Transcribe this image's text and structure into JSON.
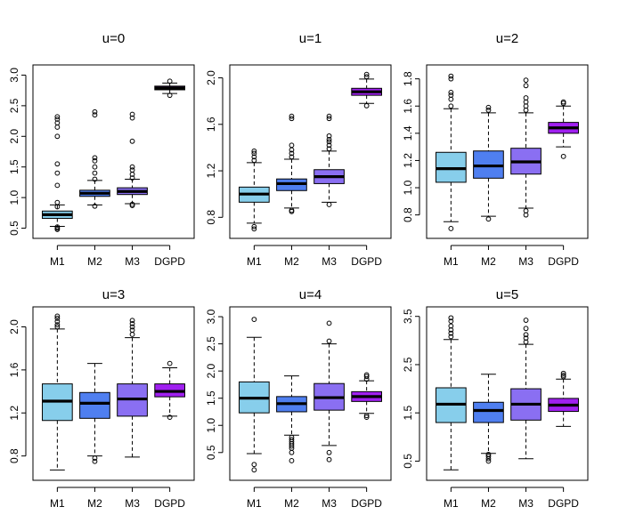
{
  "chart_data": [
    {
      "type": "boxplot",
      "title": "u=0",
      "categories": [
        "M1",
        "M2",
        "M3",
        "DGPD"
      ],
      "colors": [
        "#87ceeb",
        "#4f7ff0",
        "#8a6ff2",
        "#a020f0"
      ],
      "ylim": [
        0.45,
        3.05
      ],
      "yticks": [
        "0.5",
        "1.0",
        "1.5",
        "2.0",
        "2.5",
        "3.0"
      ],
      "boxes": [
        {
          "whisker_low": 0.53,
          "q1": 0.66,
          "median": 0.72,
          "q3": 0.78,
          "whisker_high": 0.88,
          "outliers": [
            0.48,
            0.5,
            0.52,
            0.85,
            0.92,
            1.2,
            1.4,
            1.55,
            2.0,
            2.15,
            2.22,
            2.28,
            2.32
          ]
        },
        {
          "whisker_low": 0.88,
          "q1": 1.02,
          "median": 1.07,
          "q3": 1.12,
          "whisker_high": 1.28,
          "outliers": [
            0.86,
            1.3,
            1.4,
            1.5,
            1.6,
            1.65,
            2.35,
            2.4
          ]
        },
        {
          "whisker_low": 0.9,
          "q1": 1.05,
          "median": 1.1,
          "q3": 1.16,
          "whisker_high": 1.3,
          "outliers": [
            0.87,
            0.89,
            1.32,
            1.38,
            1.45,
            1.5,
            1.92,
            2.3,
            2.36
          ]
        },
        {
          "whisker_low": 2.7,
          "q1": 2.76,
          "median": 2.79,
          "q3": 2.82,
          "whisker_high": 2.87,
          "outliers": [
            2.67,
            2.9
          ]
        }
      ]
    },
    {
      "type": "boxplot",
      "title": "u=1",
      "categories": [
        "M1",
        "M2",
        "M3",
        "DGPD"
      ],
      "colors": [
        "#87ceeb",
        "#4f7ff0",
        "#8a6ff2",
        "#a020f0"
      ],
      "ylim": [
        0.68,
        2.05
      ],
      "yticks": [
        "0.8",
        "1.2",
        "1.6",
        "2.0"
      ],
      "boxes": [
        {
          "whisker_low": 0.75,
          "q1": 0.93,
          "median": 1.0,
          "q3": 1.06,
          "whisker_high": 1.27,
          "outliers": [
            0.7,
            0.72,
            1.29,
            1.32,
            1.35,
            1.37
          ]
        },
        {
          "whisker_low": 0.88,
          "q1": 1.03,
          "median": 1.09,
          "q3": 1.13,
          "whisker_high": 1.3,
          "outliers": [
            0.85,
            0.86,
            1.32,
            1.35,
            1.38,
            1.42,
            1.65,
            1.67
          ]
        },
        {
          "whisker_low": 0.93,
          "q1": 1.09,
          "median": 1.15,
          "q3": 1.21,
          "whisker_high": 1.37,
          "outliers": [
            0.91,
            1.39,
            1.42,
            1.45,
            1.47,
            1.5,
            1.65,
            1.67
          ]
        },
        {
          "whisker_low": 1.78,
          "q1": 1.85,
          "median": 1.88,
          "q3": 1.91,
          "whisker_high": 1.99,
          "outliers": [
            1.76,
            2.01,
            2.03
          ]
        }
      ]
    },
    {
      "type": "boxplot",
      "title": "u=2",
      "categories": [
        "M1",
        "M2",
        "M3",
        "DGPD"
      ],
      "colors": [
        "#87ceeb",
        "#4f7ff0",
        "#8a6ff2",
        "#a020f0"
      ],
      "ylim": [
        0.68,
        1.85
      ],
      "yticks": [
        "0.8",
        "1.0",
        "1.2",
        "1.4",
        "1.6",
        "1.8"
      ],
      "boxes": [
        {
          "whisker_low": 0.75,
          "q1": 1.04,
          "median": 1.14,
          "q3": 1.26,
          "whisker_high": 1.58,
          "outliers": [
            0.7,
            1.6,
            1.65,
            1.68,
            1.7,
            1.8,
            1.82
          ]
        },
        {
          "whisker_low": 0.79,
          "q1": 1.07,
          "median": 1.16,
          "q3": 1.27,
          "whisker_high": 1.55,
          "outliers": [
            0.77,
            1.57,
            1.59
          ]
        },
        {
          "whisker_low": 0.85,
          "q1": 1.1,
          "median": 1.19,
          "q3": 1.29,
          "whisker_high": 1.55,
          "outliers": [
            0.8,
            0.83,
            1.57,
            1.6,
            1.63,
            1.66,
            1.75,
            1.79
          ]
        },
        {
          "whisker_low": 1.3,
          "q1": 1.4,
          "median": 1.44,
          "q3": 1.48,
          "whisker_high": 1.6,
          "outliers": [
            1.23,
            1.62,
            1.63
          ]
        }
      ]
    },
    {
      "type": "boxplot",
      "title": "u=3",
      "categories": [
        "M1",
        "M2",
        "M3",
        "DGPD"
      ],
      "colors": [
        "#87ceeb",
        "#4f7ff0",
        "#8a6ff2",
        "#a020f0"
      ],
      "ylim": [
        0.64,
        2.12
      ],
      "yticks": [
        "0.8",
        "1.2",
        "1.6",
        "2.0"
      ],
      "boxes": [
        {
          "whisker_low": 0.67,
          "q1": 1.13,
          "median": 1.31,
          "q3": 1.47,
          "whisker_high": 1.98,
          "outliers": [
            2.0,
            2.02,
            2.05,
            2.08,
            2.1
          ]
        },
        {
          "whisker_low": 0.8,
          "q1": 1.15,
          "median": 1.29,
          "q3": 1.39,
          "whisker_high": 1.66,
          "outliers": [
            0.75,
            0.78
          ]
        },
        {
          "whisker_low": 0.79,
          "q1": 1.17,
          "median": 1.33,
          "q3": 1.47,
          "whisker_high": 1.9,
          "outliers": [
            1.93,
            1.97,
            2.0,
            2.03,
            2.06
          ]
        },
        {
          "whisker_low": 1.17,
          "q1": 1.35,
          "median": 1.4,
          "q3": 1.47,
          "whisker_high": 1.62,
          "outliers": [
            1.16,
            1.66
          ]
        }
      ]
    },
    {
      "type": "boxplot",
      "title": "u=4",
      "categories": [
        "M1",
        "M2",
        "M3",
        "DGPD"
      ],
      "colors": [
        "#87ceeb",
        "#4f7ff0",
        "#8a6ff2",
        "#a020f0"
      ],
      "ylim": [
        0.12,
        3.05
      ],
      "yticks": [
        "0.5",
        "1.0",
        "1.5",
        "2.0",
        "2.5",
        "3.0"
      ],
      "boxes": [
        {
          "whisker_low": 0.48,
          "q1": 1.23,
          "median": 1.5,
          "q3": 1.8,
          "whisker_high": 2.62,
          "outliers": [
            0.18,
            0.28,
            2.95
          ]
        },
        {
          "whisker_low": 0.82,
          "q1": 1.25,
          "median": 1.4,
          "q3": 1.53,
          "whisker_high": 1.91,
          "outliers": [
            0.35,
            0.5,
            0.58,
            0.62,
            0.66,
            0.7,
            0.74,
            0.78
          ]
        },
        {
          "whisker_low": 0.63,
          "q1": 1.28,
          "median": 1.51,
          "q3": 1.77,
          "whisker_high": 2.5,
          "outliers": [
            0.37,
            0.5,
            2.55,
            2.88
          ]
        },
        {
          "whisker_low": 1.22,
          "q1": 1.44,
          "median": 1.53,
          "q3": 1.62,
          "whisker_high": 1.82,
          "outliers": [
            1.15,
            1.18,
            1.85,
            1.9,
            1.93
          ]
        }
      ]
    },
    {
      "type": "boxplot",
      "title": "u=5",
      "categories": [
        "M1",
        "M2",
        "M3",
        "DGPD"
      ],
      "colors": [
        "#87ceeb",
        "#4f7ff0",
        "#8a6ff2",
        "#a020f0"
      ],
      "ylim": [
        0.25,
        3.55
      ],
      "yticks": [
        "0.5",
        "1.5",
        "2.5",
        "3.5"
      ],
      "boxes": [
        {
          "whisker_low": 0.32,
          "q1": 1.3,
          "median": 1.68,
          "q3": 2.02,
          "whisker_high": 3.02,
          "outliers": [
            3.08,
            3.15,
            3.22,
            3.3,
            3.4,
            3.47
          ]
        },
        {
          "whisker_low": 0.66,
          "q1": 1.3,
          "median": 1.55,
          "q3": 1.72,
          "whisker_high": 2.3,
          "outliers": [
            0.5,
            0.55,
            0.6,
            0.64
          ]
        },
        {
          "whisker_low": 0.55,
          "q1": 1.35,
          "median": 1.68,
          "q3": 2.0,
          "whisker_high": 2.92,
          "outliers": [
            2.97,
            3.05,
            3.12,
            3.25,
            3.42
          ]
        },
        {
          "whisker_low": 1.22,
          "q1": 1.53,
          "median": 1.66,
          "q3": 1.8,
          "whisker_high": 2.2,
          "outliers": [
            2.25,
            2.28,
            2.32
          ]
        }
      ]
    }
  ]
}
